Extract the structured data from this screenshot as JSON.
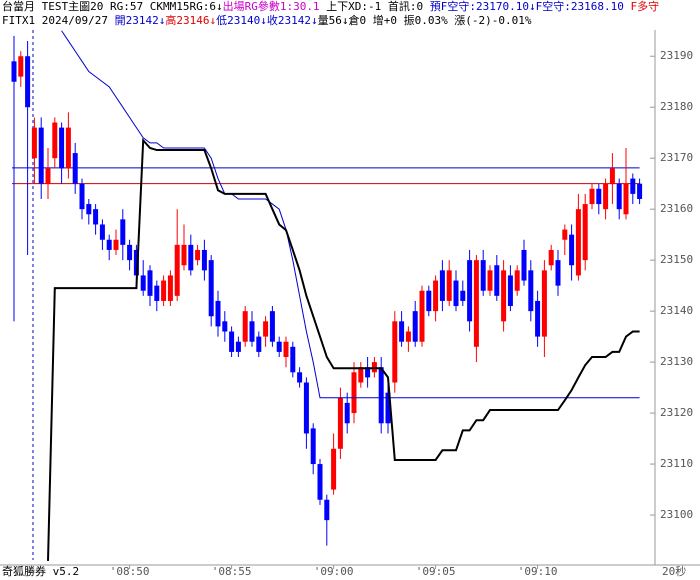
{
  "header": {
    "line1": [
      "台當月 TEST主圖20 RG:57 CKMM15RG:6↓",
      "出場RG參數1:30.1",
      " 上下XD:-1 首訊:0 ",
      "預F空守:23170.10↓",
      "F空守:23168.10",
      " F多守"
    ],
    "line2": [
      "FITX1 2024/09/27 ",
      "開23142↓",
      "高23146↓",
      "低23140↓",
      "收23142↓",
      "量56↓倉0 增+0 振0.03% 漲(-2)-0.01%"
    ]
  },
  "footer": {
    "left": "奇狐勝券 v5.2",
    "right": "20秒"
  },
  "chart_data": {
    "type": "candlestick",
    "up_color": "#ff0000",
    "down_color": "#0000ff",
    "categories": [
      null,
      null,
      null,
      null,
      null,
      null,
      null,
      null,
      null,
      null,
      null,
      null,
      null,
      null,
      null,
      null,
      null,
      "'08:50",
      null,
      null,
      null,
      null,
      null,
      null,
      null,
      null,
      null,
      null,
      null,
      null,
      null,
      null,
      "'08:55",
      null,
      null,
      null,
      null,
      null,
      null,
      null,
      null,
      null,
      null,
      null,
      null,
      null,
      null,
      "'09:00",
      null,
      null,
      null,
      null,
      null,
      null,
      null,
      null,
      null,
      null,
      null,
      null,
      null,
      null,
      "'09:05",
      null,
      null,
      null,
      null,
      null,
      null,
      null,
      null,
      null,
      null,
      null,
      null,
      null,
      null,
      "'09:10",
      null,
      null,
      null,
      null,
      null,
      null,
      null,
      null,
      null,
      null,
      null,
      null,
      null,
      null,
      null
    ],
    "open": [
      23189,
      23186,
      23190,
      23170,
      23176,
      23165,
      23170,
      23176,
      23168,
      23171,
      23165,
      23161,
      23160,
      23157,
      23154,
      23152,
      23158,
      23153,
      23152,
      23147,
      23148,
      23145,
      23142,
      23142,
      23143,
      23149,
      23153,
      23150,
      23152,
      23150,
      23142,
      23138,
      23136,
      23134,
      23134,
      23138,
      23135,
      23135,
      23140,
      23134,
      23131,
      23133,
      23128,
      23126,
      23117,
      23110,
      23103,
      23105,
      23113,
      23122,
      23120,
      23126,
      23129,
      23128,
      23129,
      23124,
      23126,
      23138,
      23134,
      23140,
      23134,
      23144,
      23140,
      23148,
      23142,
      23146,
      23144,
      23150,
      23133,
      23150,
      23144,
      23149,
      23138,
      23147,
      23144,
      23152,
      23148,
      23142,
      23135,
      23149,
      23150,
      23154,
      23155,
      23147,
      23150,
      23161,
      23164,
      23160,
      23165,
      23165,
      23159,
      23166,
      23165
    ],
    "high": [
      23194,
      23191,
      23193,
      23178,
      23178,
      23172,
      23178,
      23177,
      23179,
      23173,
      23166,
      23162,
      23161,
      23158,
      23155,
      23156,
      23160,
      23154,
      23153,
      23150,
      23149,
      23146,
      23147,
      23148,
      23160,
      23157,
      23155,
      23153,
      23154,
      23151,
      23144,
      23140,
      23137,
      23135,
      23141,
      23140,
      23136,
      23139,
      23141,
      23135,
      23135,
      23134,
      23129,
      23127,
      23118,
      23111,
      23104,
      23116,
      23125,
      23124,
      23130,
      23130,
      23131,
      23131,
      23131,
      23126,
      23140,
      23140,
      23137,
      23142,
      23145,
      23145,
      23147,
      23150,
      23150,
      23148,
      23146,
      23152,
      23151,
      23152,
      23149,
      23151,
      23150,
      23149,
      23149,
      23154,
      23150,
      23144,
      23150,
      23153,
      23152,
      23157,
      23157,
      23163,
      23163,
      23165,
      23165,
      23166,
      23171,
      23166,
      23172,
      23167,
      23166
    ],
    "low": [
      23138,
      23184,
      23151,
      23165,
      23162,
      23162,
      23168,
      23165,
      23166,
      23163,
      23158,
      23157,
      23155,
      23152,
      23150,
      23151,
      23150,
      23148,
      23145,
      23143,
      23141,
      23140,
      23141,
      23141,
      23142,
      23148,
      23147,
      23149,
      23146,
      23137,
      23135,
      23134,
      23131,
      23131,
      23133,
      23133,
      23131,
      23133,
      23133,
      23131,
      23129,
      23127,
      23125,
      23113,
      23108,
      23102,
      23094,
      23104,
      23111,
      23116,
      23118,
      23125,
      23125,
      23127,
      23116,
      23116,
      23124,
      23133,
      23132,
      23133,
      23133,
      23139,
      23138,
      23140,
      23141,
      23140,
      23141,
      23136,
      23130,
      23143,
      23143,
      23142,
      23136,
      23140,
      23143,
      23145,
      23138,
      23133,
      23131,
      23148,
      23143,
      23151,
      23146,
      23146,
      23148,
      23160,
      23159,
      23158,
      23161,
      23158,
      23158,
      23161,
      23161
    ],
    "close": [
      23185,
      23190,
      23180,
      23176,
      23165,
      23168,
      23177,
      23168,
      23176,
      23165,
      23160,
      23159,
      23157,
      23154,
      23152,
      23154,
      23153,
      23150,
      23147,
      23144,
      23143,
      23142,
      23146,
      23147,
      23153,
      23153,
      23148,
      23152,
      23148,
      23139,
      23137,
      23136,
      23132,
      23132,
      23140,
      23134,
      23132,
      23138,
      23134,
      23132,
      23134,
      23128,
      23126,
      23116,
      23110,
      23103,
      23099,
      23113,
      23123,
      23118,
      23128,
      23129,
      23127,
      23130,
      23118,
      23118,
      23138,
      23134,
      23136,
      23134,
      23144,
      23140,
      23146,
      23142,
      23148,
      23141,
      23142,
      23138,
      23150,
      23144,
      23148,
      23143,
      23148,
      23141,
      23148,
      23146,
      23140,
      23135,
      23148,
      23152,
      23145,
      23156,
      23149,
      23160,
      23161,
      23164,
      23161,
      23165,
      23168,
      23160,
      23165,
      23163,
      23162
    ],
    "series": [
      {
        "color": "#0000cc",
        "width": 1,
        "values": [
          null,
          null,
          null,
          null,
          null,
          null,
          null,
          23195,
          23193,
          23191,
          23189,
          23187,
          23186,
          23185,
          23184,
          23182,
          23180,
          23178,
          23176,
          23174,
          23173,
          23173,
          23172,
          23172,
          23172,
          23172,
          23172,
          23172,
          23172,
          23170,
          23166,
          23163,
          23163,
          23162,
          23162,
          23162,
          23162,
          23162,
          23161,
          23160,
          23156,
          23150,
          23143,
          23136,
          23130,
          23123,
          23123,
          23123,
          23123,
          23123,
          23123,
          23123,
          23123,
          23123,
          23123,
          23123,
          23123,
          23123,
          23123,
          23123,
          23123,
          23123,
          23123,
          23123,
          23123,
          23123,
          23123,
          23123,
          23123,
          23123,
          23123,
          23123,
          23123,
          23123,
          23123,
          23123,
          23123,
          23123,
          23123,
          23123,
          23123,
          23123,
          23123,
          23123,
          23123,
          23123,
          23123,
          23123,
          23123,
          23123,
          23123,
          23123,
          23123
        ]
      },
      {
        "color": "#000000",
        "width": 2,
        "values": [
          null,
          null,
          null,
          null,
          null,
          23091,
          23144.5,
          23144.5,
          23144.5,
          23144.5,
          23144.5,
          23144.5,
          23144.5,
          23144.5,
          23144.5,
          23144.5,
          23144.5,
          23144.5,
          23144.5,
          23173.5,
          23172,
          23171.6,
          23171.6,
          23171.6,
          23171.6,
          23171.6,
          23171.6,
          23171.6,
          23171.6,
          23168,
          23163.7,
          23163,
          23163,
          23163,
          23163,
          23163,
          23163,
          23163,
          23160,
          23157,
          23155.9,
          23152,
          23148,
          23143,
          23139,
          23135,
          23131,
          23128.8,
          23128.8,
          23128.8,
          23128.8,
          23128.8,
          23128.8,
          23128.8,
          23128.8,
          23127,
          23110.8,
          23110.8,
          23110.8,
          23110.8,
          23110.8,
          23110.8,
          23110.8,
          23112.7,
          23112.7,
          23112.7,
          23116.6,
          23116.6,
          23118.6,
          23118.6,
          23120.6,
          23120.6,
          23120.6,
          23120.6,
          23120.6,
          23120.6,
          23120.6,
          23120.6,
          23120.6,
          23120.6,
          23120.6,
          23122.5,
          23124.5,
          23127,
          23129.4,
          23131,
          23131,
          23131,
          23132,
          23132,
          23135,
          23136,
          23136
        ]
      }
    ],
    "hlines": [
      {
        "value": 23168.1,
        "color": "#0000cc"
      },
      {
        "value": 23165,
        "color": "#cc0000"
      }
    ],
    "ylim": [
      23090.2,
      23197.5
    ],
    "yticks": [
      23100,
      23110,
      23120,
      23130,
      23140,
      23150,
      23160,
      23170,
      23180,
      23190
    ]
  }
}
